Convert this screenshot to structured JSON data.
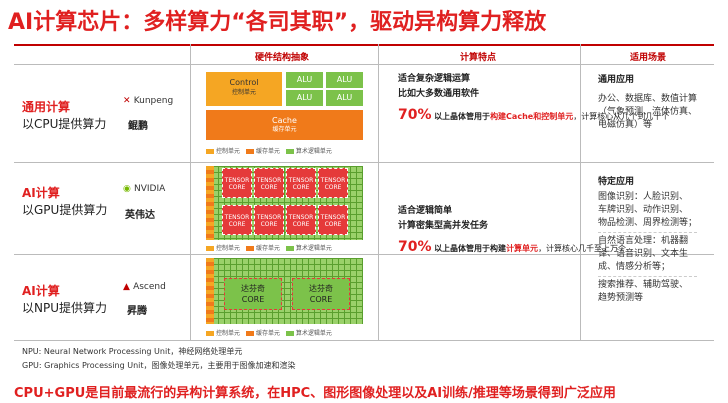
{
  "title": "AI计算芯片：多样算力“各司其职”，驱动异构算力释放",
  "headers": {
    "hw": "硬件结构抽象",
    "feature": "计算特点",
    "scene": "适用场景"
  },
  "rows": {
    "cpu": {
      "label_red": "通用计算",
      "label_dark": "以CPU提供算力",
      "brand": "鲲鹏",
      "brand_logo": "Kunpeng"
    },
    "gpu": {
      "label_red": "AI计算",
      "label_dark": "以GPU提供算力",
      "brand": "英伟达",
      "brand_logo": "NVIDIA"
    },
    "npu": {
      "label_red": "AI计算",
      "label_dark": "以NPU提供算力",
      "brand": "昇腾",
      "brand_logo": "Ascend"
    }
  },
  "cpu_hw": {
    "control": "Control",
    "control_sub": "控制单元",
    "alu": "ALU",
    "cache": "Cache",
    "cache_sub": "缓存单元"
  },
  "legend": {
    "control": "控制单元",
    "cache": "缓存单元",
    "alu": "算术逻辑单元"
  },
  "gpu_hw": {
    "tensor_core": "TENSOR CORE"
  },
  "npu_hw": {
    "core_name": "达芬奇",
    "core": "CORE"
  },
  "cpu_feature": {
    "l1": "适合复杂逻辑运算",
    "l2": "比如大多数通用软件",
    "pct": "70%",
    "l3a": "以上晶体管用于",
    "l3b": "构建Cache和控制单元",
    "l4": "，计算核心从几个到几十个"
  },
  "gpu_feature": {
    "l1": "适合逻辑简单",
    "l2": "计算密集型高并发任务",
    "pct": "70%",
    "l3a": "以上晶体管用于构建",
    "l3b": "计算单元",
    "l4": "，计算核心几千至上万个"
  },
  "cpu_scene": {
    "title": "通用应用",
    "l1": "办公、数据库、数值计算",
    "l2": "（气象预测、流体仿真、",
    "l3": "电磁仿真）等"
  },
  "ai_scene": {
    "title": "特定应用",
    "l1": "图像识别：人脸识别、",
    "l2": "车牌识别、动作识别、",
    "l3": "物品检测、周界检测等；",
    "l4": "自然语言处理：机器翻",
    "l5": "译、语音识别、文本生",
    "l6": "成、情感分析等；",
    "l7": "搜索推荐、辅助驾驶、",
    "l8": "趋势预测等"
  },
  "footnotes": {
    "npu": "NPU: Neural Network Processing Unit，神经网络处理单元",
    "gpu": "GPU: Graphics Processing Unit，图像处理单元，主要用于图像加速和渲染"
  },
  "bottom": "CPU+GPU是目前最流行的异构计算系统，在HPC、图形图像处理以及AI训练/推理等场景得到广泛应用",
  "colors": {
    "red": "#e02020",
    "orange": "#f39c12",
    "green": "#7cc24a"
  }
}
